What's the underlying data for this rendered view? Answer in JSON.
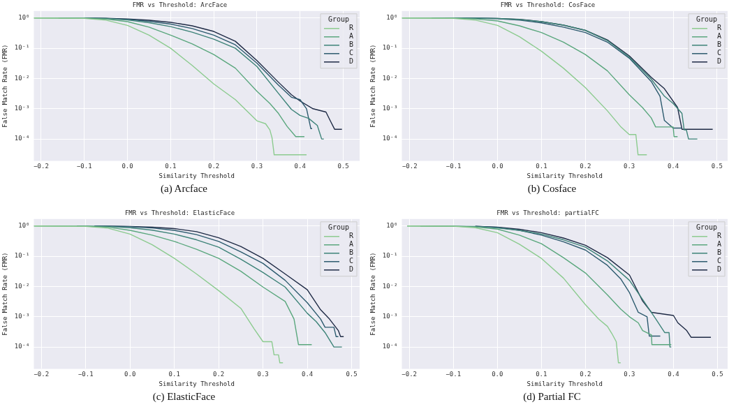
{
  "chart_data": [
    {
      "type": "line",
      "title": "FMR vs Threshold: ArcFace",
      "xlabel": "Similarity Threshold",
      "ylabel": "False Match Rate (FMR)",
      "legend_title": "Group",
      "legend": "top right",
      "grid": true,
      "log": "y",
      "annotations": [
        "(a) Arcface"
      ],
      "xlim": [
        -0.217,
        0.538
      ],
      "ylim": [
        1.9e-05,
        1.7
      ],
      "xticks": [
        {
          "value": -0.2,
          "label": "−0.2"
        },
        {
          "value": -0.1,
          "label": "−0.1"
        },
        {
          "value": 0,
          "label": "0.0"
        },
        0.1,
        0.2,
        0.3,
        0.4,
        0.5
      ],
      "yticks": [
        {
          "value": 0.0001,
          "label": "10⁻⁴"
        },
        {
          "value": 0.001,
          "label": "10⁻³"
        },
        {
          "value": 0.01,
          "label": "10⁻²"
        },
        {
          "value": 0.1,
          "label": "10⁻¹"
        },
        {
          "value": 1,
          "label": "10⁰"
        }
      ],
      "series": [
        {
          "name": "R",
          "color": "#8ccb8f",
          "x": [
            -0.217,
            -0.1,
            -0.05,
            0,
            0.05,
            0.1,
            0.15,
            0.2,
            0.25,
            0.3,
            0.32,
            0.33,
            0.335,
            0.34,
            0.415
          ],
          "values": [
            1,
            0.97,
            0.85,
            0.57,
            0.27,
            0.1,
            0.027,
            0.0066,
            0.002,
            0.0004,
            0.00032,
            0.0002,
            0.00011,
            3e-05,
            3e-05
          ]
        },
        {
          "name": "A",
          "color": "#5aa77d",
          "x": [
            -0.217,
            -0.1,
            -0.05,
            0,
            0.05,
            0.1,
            0.15,
            0.2,
            0.25,
            0.3,
            0.33,
            0.35,
            0.37,
            0.39,
            0.41
          ],
          "values": [
            1,
            0.99,
            0.92,
            0.76,
            0.5,
            0.27,
            0.14,
            0.062,
            0.022,
            0.0038,
            0.0015,
            0.0007,
            0.00026,
            0.00012,
            0.00012
          ]
        },
        {
          "name": "B",
          "color": "#3d8378",
          "x": [
            -0.16,
            -0.05,
            0,
            0.05,
            0.1,
            0.15,
            0.2,
            0.25,
            0.3,
            0.35,
            0.38,
            0.4,
            0.42,
            0.44,
            0.45,
            0.455
          ],
          "values": [
            1,
            0.96,
            0.86,
            0.7,
            0.52,
            0.34,
            0.2,
            0.1,
            0.025,
            0.0032,
            0.00095,
            0.0006,
            0.00048,
            0.00028,
            0.0001,
            0.0001
          ]
        },
        {
          "name": "C",
          "color": "#2c5a6e",
          "x": [
            -0.1,
            -0.05,
            0,
            0.05,
            0.1,
            0.15,
            0.2,
            0.25,
            0.3,
            0.35,
            0.38,
            0.4,
            0.415,
            0.425,
            0.428
          ],
          "values": [
            1,
            0.97,
            0.9,
            0.78,
            0.63,
            0.45,
            0.27,
            0.13,
            0.032,
            0.006,
            0.0024,
            0.002,
            0.001,
            0.00022,
            0.00022
          ]
        },
        {
          "name": "D",
          "color": "#1e2a45",
          "x": [
            -0.1,
            -0.05,
            0,
            0.05,
            0.1,
            0.15,
            0.2,
            0.25,
            0.3,
            0.35,
            0.38,
            0.4,
            0.43,
            0.46,
            0.47,
            0.48,
            0.497
          ],
          "values": [
            1,
            0.98,
            0.93,
            0.84,
            0.72,
            0.55,
            0.36,
            0.17,
            0.039,
            0.0075,
            0.0029,
            0.0018,
            0.001,
            0.00078,
            0.0004,
            0.00021,
            0.00021
          ]
        }
      ]
    },
    {
      "type": "line",
      "title": "FMR vs Threshold: CosFace",
      "xlabel": "Similarity Threshold",
      "ylabel": "False Match Rate (FMR)",
      "legend_title": "Group",
      "legend": "top right",
      "grid": true,
      "log": "y",
      "annotations": [
        "(b) Cosface"
      ],
      "xlim": [
        -0.218,
        0.524
      ],
      "ylim": [
        1.9e-05,
        1.7
      ],
      "xticks": [
        {
          "value": -0.2,
          "label": "−0.2"
        },
        {
          "value": -0.1,
          "label": "−0.1"
        },
        {
          "value": 0,
          "label": "0.0"
        },
        0.1,
        0.2,
        0.3,
        0.4,
        0.5
      ],
      "yticks": [
        {
          "value": 0.0001,
          "label": "10⁻⁴"
        },
        {
          "value": 0.001,
          "label": "10⁻³"
        },
        {
          "value": 0.01,
          "label": "10⁻²"
        },
        {
          "value": 0.1,
          "label": "10⁻¹"
        },
        {
          "value": 1,
          "label": "10⁰"
        }
      ],
      "series": [
        {
          "name": "R",
          "color": "#8ccb8f",
          "x": [
            -0.218,
            -0.1,
            -0.05,
            0,
            0.05,
            0.1,
            0.15,
            0.2,
            0.25,
            0.28,
            0.3,
            0.315,
            0.32,
            0.34
          ],
          "values": [
            1,
            0.97,
            0.85,
            0.57,
            0.24,
            0.08,
            0.022,
            0.005,
            0.00086,
            0.00026,
            0.00014,
            0.00014,
            3e-05,
            3e-05
          ]
        },
        {
          "name": "A",
          "color": "#5aa77d",
          "x": [
            -0.218,
            -0.1,
            -0.05,
            0,
            0.05,
            0.1,
            0.15,
            0.2,
            0.25,
            0.3,
            0.33,
            0.35,
            0.36,
            0.4,
            0.402,
            0.41
          ],
          "values": [
            1,
            0.99,
            0.93,
            0.8,
            0.55,
            0.33,
            0.16,
            0.062,
            0.018,
            0.0029,
            0.0011,
            0.0005,
            0.00025,
            0.00025,
            0.00012,
            0.00012
          ]
        },
        {
          "name": "B",
          "color": "#3d8378",
          "x": [
            -0.15,
            -0.05,
            0,
            0.05,
            0.1,
            0.15,
            0.2,
            0.25,
            0.3,
            0.35,
            0.38,
            0.4,
            0.42,
            0.425,
            0.43,
            0.435,
            0.455
          ],
          "values": [
            1,
            0.99,
            0.96,
            0.89,
            0.76,
            0.58,
            0.39,
            0.18,
            0.051,
            0.0096,
            0.0026,
            0.0015,
            0.0007,
            0.0002,
            0.0002,
            0.0001,
            0.0001
          ]
        },
        {
          "name": "C",
          "color": "#2c5a6e",
          "x": [
            -0.12,
            -0.05,
            0,
            0.05,
            0.1,
            0.15,
            0.2,
            0.25,
            0.3,
            0.35,
            0.37,
            0.38,
            0.4,
            0.42
          ],
          "values": [
            1,
            0.99,
            0.95,
            0.85,
            0.69,
            0.5,
            0.33,
            0.16,
            0.047,
            0.008,
            0.0026,
            0.00041,
            0.00023,
            0.00023
          ]
        },
        {
          "name": "D",
          "color": "#1e2a45",
          "x": [
            -0.08,
            0,
            0.05,
            0.1,
            0.15,
            0.2,
            0.25,
            0.3,
            0.35,
            0.38,
            0.41,
            0.42,
            0.49
          ],
          "values": [
            1,
            0.97,
            0.9,
            0.76,
            0.58,
            0.39,
            0.19,
            0.056,
            0.011,
            0.0046,
            0.0011,
            0.00021,
            0.00021
          ]
        }
      ]
    },
    {
      "type": "line",
      "title": "FMR vs Threshold: ElasticFace",
      "xlabel": "Similarity Threshold",
      "ylabel": "False Match Rate (FMR)",
      "legend_title": "Group",
      "legend": "top right",
      "grid": true,
      "log": "y",
      "annotations": [
        "(c) ElasticFace"
      ],
      "xlim": [
        -0.217,
        0.518
      ],
      "ylim": [
        1.9e-05,
        1.7
      ],
      "xticks": [
        {
          "value": -0.2,
          "label": "−0.2"
        },
        {
          "value": -0.1,
          "label": "−0.1"
        },
        {
          "value": 0,
          "label": "0.0"
        },
        0.1,
        0.2,
        0.3,
        0.4,
        0.5
      ],
      "yticks": [
        {
          "value": 0.0001,
          "label": "10⁻⁴"
        },
        {
          "value": 0.001,
          "label": "10⁻³"
        },
        {
          "value": 0.01,
          "label": "10⁻²"
        },
        {
          "value": 0.1,
          "label": "10⁻¹"
        },
        {
          "value": 1,
          "label": "10⁰"
        }
      ],
      "series": [
        {
          "name": "R",
          "color": "#8ccb8f",
          "x": [
            -0.217,
            -0.1,
            -0.05,
            0,
            0.05,
            0.1,
            0.15,
            0.2,
            0.25,
            0.28,
            0.3,
            0.32,
            0.325,
            0.335,
            0.338,
            0.345
          ],
          "values": [
            1,
            0.97,
            0.85,
            0.54,
            0.24,
            0.085,
            0.026,
            0.0073,
            0.0019,
            0.0004,
            0.00015,
            0.00015,
            5.5e-05,
            5.5e-05,
            3e-05,
            3e-05
          ]
        },
        {
          "name": "A",
          "color": "#5aa77d",
          "x": [
            -0.217,
            -0.1,
            -0.05,
            0,
            0.05,
            0.1,
            0.15,
            0.2,
            0.25,
            0.3,
            0.35,
            0.37,
            0.38,
            0.41
          ],
          "values": [
            1,
            0.99,
            0.92,
            0.72,
            0.5,
            0.31,
            0.17,
            0.085,
            0.032,
            0.0096,
            0.0032,
            0.00084,
            0.00012,
            0.00012
          ]
        },
        {
          "name": "B",
          "color": "#3d8378",
          "x": [
            -0.12,
            -0.05,
            0,
            0.05,
            0.1,
            0.15,
            0.2,
            0.25,
            0.3,
            0.35,
            0.4,
            0.42,
            0.44,
            0.46,
            0.478
          ],
          "values": [
            1,
            0.97,
            0.88,
            0.73,
            0.54,
            0.35,
            0.2,
            0.08,
            0.029,
            0.0096,
            0.0013,
            0.00069,
            0.0003,
            0.0001,
            0.0001
          ]
        },
        {
          "name": "C",
          "color": "#2c5a6e",
          "x": [
            -0.08,
            0,
            0.05,
            0.1,
            0.15,
            0.2,
            0.25,
            0.3,
            0.35,
            0.4,
            0.43,
            0.44,
            0.46,
            0.465,
            0.47
          ],
          "values": [
            1,
            0.95,
            0.86,
            0.72,
            0.52,
            0.31,
            0.14,
            0.058,
            0.016,
            0.0029,
            0.00084,
            0.00045,
            0.00045,
            0.00022,
            0.00022
          ]
        },
        {
          "name": "D",
          "color": "#1e2a45",
          "x": [
            -0.08,
            0,
            0.05,
            0.1,
            0.15,
            0.2,
            0.25,
            0.3,
            0.35,
            0.4,
            0.43,
            0.45,
            0.47,
            0.475,
            0.482
          ],
          "values": [
            1,
            0.97,
            0.91,
            0.82,
            0.65,
            0.41,
            0.21,
            0.085,
            0.026,
            0.0078,
            0.0017,
            0.00084,
            0.00035,
            0.00022,
            0.00022
          ]
        }
      ]
    },
    {
      "type": "line",
      "title": "FMR vs Threshold: partialFC",
      "xlabel": "Similarity Threshold",
      "ylabel": "False Match Rate (FMR)",
      "legend_title": "Group",
      "legend": "top right",
      "grid": true,
      "log": "y",
      "annotations": [
        "(d) Partial FC"
      ],
      "xlim": [
        -0.217,
        0.523
      ],
      "ylim": [
        1.9e-05,
        1.7
      ],
      "xticks": [
        {
          "value": -0.2,
          "label": "−0.2"
        },
        {
          "value": -0.1,
          "label": "−0.1"
        },
        {
          "value": 0,
          "label": "0.0"
        },
        0.1,
        0.2,
        0.3,
        0.4,
        0.5
      ],
      "yticks": [
        {
          "value": 0.0001,
          "label": "10⁻⁴"
        },
        {
          "value": 0.001,
          "label": "10⁻³"
        },
        {
          "value": 0.01,
          "label": "10⁻²"
        },
        {
          "value": 0.1,
          "label": "10⁻¹"
        },
        {
          "value": 1,
          "label": "10⁰"
        }
      ],
      "series": [
        {
          "name": "R",
          "color": "#8ccb8f",
          "x": [
            -0.205,
            -0.1,
            -0.05,
            0,
            0.05,
            0.1,
            0.15,
            0.2,
            0.23,
            0.25,
            0.26,
            0.27,
            0.275,
            0.28
          ],
          "values": [
            1,
            0.98,
            0.88,
            0.6,
            0.25,
            0.085,
            0.019,
            0.0025,
            0.00084,
            0.00048,
            0.00028,
            0.00015,
            3e-05,
            3e-05
          ]
        },
        {
          "name": "A",
          "color": "#5aa77d",
          "x": [
            -0.205,
            -0.1,
            -0.05,
            0,
            0.05,
            0.1,
            0.15,
            0.2,
            0.25,
            0.28,
            0.3,
            0.32,
            0.33,
            0.35,
            0.351,
            0.395
          ],
          "values": [
            1,
            0.99,
            0.93,
            0.79,
            0.5,
            0.26,
            0.09,
            0.028,
            0.0053,
            0.0018,
            0.001,
            0.00063,
            0.00035,
            0.00025,
            0.00012,
            0.00012
          ]
        },
        {
          "name": "B",
          "color": "#3d8378",
          "x": [
            -0.175,
            -0.05,
            0,
            0.05,
            0.1,
            0.15,
            0.2,
            0.25,
            0.3,
            0.33,
            0.36,
            0.38,
            0.39,
            0.392,
            0.395
          ],
          "values": [
            1,
            0.97,
            0.86,
            0.72,
            0.54,
            0.35,
            0.2,
            0.07,
            0.016,
            0.0037,
            0.00084,
            0.0003,
            0.0003,
            0.0001,
            0.0001
          ]
        },
        {
          "name": "C",
          "color": "#2c5a6e",
          "x": [
            -0.05,
            0,
            0.05,
            0.1,
            0.15,
            0.2,
            0.25,
            0.28,
            0.3,
            0.32,
            0.34,
            0.345,
            0.37
          ],
          "values": [
            0.98,
            0.9,
            0.72,
            0.5,
            0.3,
            0.16,
            0.05,
            0.018,
            0.0063,
            0.0014,
            0.001,
            0.00023,
            0.00023
          ]
        },
        {
          "name": "D",
          "color": "#1e2a45",
          "x": [
            -0.05,
            0,
            0.05,
            0.1,
            0.15,
            0.2,
            0.25,
            0.3,
            0.33,
            0.35,
            0.4,
            0.41,
            0.43,
            0.44,
            0.485
          ],
          "values": [
            0.98,
            0.92,
            0.78,
            0.6,
            0.4,
            0.23,
            0.09,
            0.024,
            0.0033,
            0.0014,
            0.0011,
            0.00063,
            0.00035,
            0.00021,
            0.00021
          ]
        }
      ]
    }
  ]
}
